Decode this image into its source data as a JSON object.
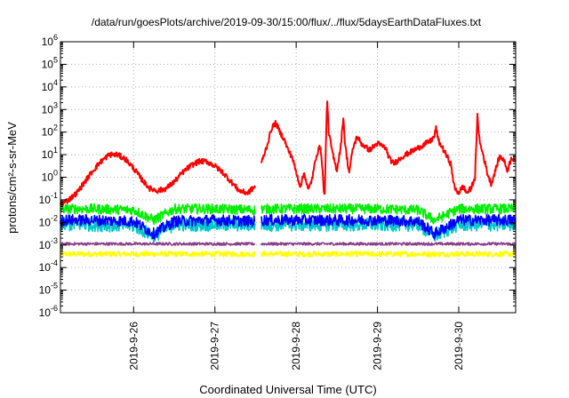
{
  "chart_data": {
    "type": "line",
    "title": "/data/run/goesPlots/archive/2019-09-30/15:00/flux/../flux/5daysEarthDataFluxes.txt",
    "xlabel": "Coordinated Universal Time (UTC)",
    "ylabel": "protons/cm²-s-sr-MeV",
    "y_scale": "log",
    "ylim_exponents": [
      -6,
      6
    ],
    "yticks": [
      {
        "base": "10",
        "exp": "6"
      },
      {
        "base": "10",
        "exp": "5"
      },
      {
        "base": "10",
        "exp": "4"
      },
      {
        "base": "10",
        "exp": "3"
      },
      {
        "base": "10",
        "exp": "2"
      },
      {
        "base": "10",
        "exp": "1"
      },
      {
        "base": "10",
        "exp": "0"
      },
      {
        "base": "10",
        "exp": "-1"
      },
      {
        "base": "10",
        "exp": "-2"
      },
      {
        "base": "10",
        "exp": "-3"
      },
      {
        "base": "10",
        "exp": "-4"
      },
      {
        "base": "10",
        "exp": "-5"
      },
      {
        "base": "10",
        "exp": "-6"
      }
    ],
    "xlim_days": [
      25.1,
      30.7
    ],
    "xticks": [
      "2019-9-26",
      "2019-9-27",
      "2019-9-28",
      "2019-9-29",
      "2019-9-30"
    ],
    "xtick_days": [
      26,
      27,
      28,
      29,
      30
    ],
    "grid": true,
    "gaps": [
      [
        27.5,
        27.57
      ]
    ],
    "series": [
      {
        "color": "#ff0000",
        "noise": 0.12,
        "points": [
          [
            25.1,
            -1.2
          ],
          [
            25.2,
            -1.0
          ],
          [
            25.3,
            -0.7
          ],
          [
            25.4,
            -0.2
          ],
          [
            25.5,
            0.3
          ],
          [
            25.6,
            0.7
          ],
          [
            25.7,
            1.0
          ],
          [
            25.8,
            1.0
          ],
          [
            25.9,
            0.8
          ],
          [
            26.0,
            0.4
          ],
          [
            26.1,
            -0.1
          ],
          [
            26.2,
            -0.5
          ],
          [
            26.3,
            -0.6
          ],
          [
            26.4,
            -0.5
          ],
          [
            26.5,
            -0.2
          ],
          [
            26.6,
            0.2
          ],
          [
            26.7,
            0.5
          ],
          [
            26.8,
            0.7
          ],
          [
            26.9,
            0.7
          ],
          [
            27.0,
            0.5
          ],
          [
            27.1,
            0.2
          ],
          [
            27.2,
            -0.2
          ],
          [
            27.3,
            -0.6
          ],
          [
            27.4,
            -0.7
          ],
          [
            27.5,
            -0.4
          ],
          [
            27.57,
            0.6
          ],
          [
            27.65,
            1.5
          ],
          [
            27.7,
            2.2
          ],
          [
            27.75,
            2.4
          ],
          [
            27.8,
            2.0
          ],
          [
            27.85,
            1.7
          ],
          [
            27.9,
            1.2
          ],
          [
            27.95,
            0.9
          ],
          [
            28.0,
            0.2
          ],
          [
            28.05,
            -0.4
          ],
          [
            28.1,
            0.2
          ],
          [
            28.15,
            -0.6
          ],
          [
            28.2,
            0.0
          ],
          [
            28.25,
            1.0
          ],
          [
            28.3,
            1.4
          ],
          [
            28.35,
            -1.0
          ],
          [
            28.38,
            3.6
          ],
          [
            28.4,
            2.0
          ],
          [
            28.45,
            1.0
          ],
          [
            28.5,
            0.3
          ],
          [
            28.55,
            1.4
          ],
          [
            28.58,
            2.7
          ],
          [
            28.6,
            1.5
          ],
          [
            28.65,
            0.2
          ],
          [
            28.7,
            1.3
          ],
          [
            28.75,
            1.8
          ],
          [
            28.8,
            1.5
          ],
          [
            28.9,
            1.2
          ],
          [
            29.0,
            1.5
          ],
          [
            29.1,
            1.3
          ],
          [
            29.15,
            0.8
          ],
          [
            29.2,
            0.6
          ],
          [
            29.3,
            0.9
          ],
          [
            29.4,
            1.1
          ],
          [
            29.5,
            1.3
          ],
          [
            29.6,
            1.5
          ],
          [
            29.65,
            1.6
          ],
          [
            29.7,
            1.8
          ],
          [
            29.72,
            2.2
          ],
          [
            29.75,
            1.6
          ],
          [
            29.8,
            1.3
          ],
          [
            29.9,
            0.6
          ],
          [
            29.95,
            -0.5
          ],
          [
            30.0,
            -0.7
          ],
          [
            30.05,
            -0.4
          ],
          [
            30.1,
            -0.7
          ],
          [
            30.15,
            -0.5
          ],
          [
            30.2,
            0.0
          ],
          [
            30.23,
            2.7
          ],
          [
            30.26,
            1.5
          ],
          [
            30.3,
            1.0
          ],
          [
            30.35,
            0.2
          ],
          [
            30.4,
            -0.3
          ],
          [
            30.45,
            0.3
          ],
          [
            30.5,
            0.9
          ],
          [
            30.55,
            0.8
          ],
          [
            30.6,
            0.3
          ],
          [
            30.65,
            0.9
          ],
          [
            30.7,
            0.7
          ]
        ]
      },
      {
        "color": "#00ee00",
        "noise": 0.22,
        "points": [
          [
            25.1,
            -1.4
          ],
          [
            25.5,
            -1.4
          ],
          [
            26.0,
            -1.45
          ],
          [
            26.25,
            -1.9
          ],
          [
            26.5,
            -1.4
          ],
          [
            27.0,
            -1.4
          ],
          [
            27.5,
            -1.45
          ],
          [
            27.57,
            -1.4
          ],
          [
            28.0,
            -1.4
          ],
          [
            28.5,
            -1.4
          ],
          [
            29.0,
            -1.4
          ],
          [
            29.5,
            -1.45
          ],
          [
            29.7,
            -1.9
          ],
          [
            30.0,
            -1.4
          ],
          [
            30.7,
            -1.4
          ]
        ]
      },
      {
        "color": "#00c8c8",
        "noise": 0.3,
        "points": [
          [
            25.1,
            -2.1
          ],
          [
            25.5,
            -2.1
          ],
          [
            26.0,
            -2.15
          ],
          [
            26.25,
            -2.6
          ],
          [
            26.5,
            -2.1
          ],
          [
            27.0,
            -2.1
          ],
          [
            27.5,
            -2.1
          ],
          [
            27.57,
            -2.1
          ],
          [
            28.0,
            -2.1
          ],
          [
            28.5,
            -2.1
          ],
          [
            29.0,
            -2.1
          ],
          [
            29.5,
            -2.1
          ],
          [
            29.7,
            -2.6
          ],
          [
            30.0,
            -2.1
          ],
          [
            30.7,
            -2.1
          ]
        ]
      },
      {
        "color": "#0000ff",
        "noise": 0.25,
        "points": [
          [
            25.1,
            -1.9
          ],
          [
            25.5,
            -1.9
          ],
          [
            26.0,
            -1.95
          ],
          [
            26.25,
            -2.5
          ],
          [
            26.5,
            -1.95
          ],
          [
            27.0,
            -1.9
          ],
          [
            27.5,
            -1.95
          ],
          [
            27.57,
            -1.9
          ],
          [
            28.0,
            -1.9
          ],
          [
            28.5,
            -1.9
          ],
          [
            29.0,
            -1.9
          ],
          [
            29.5,
            -1.95
          ],
          [
            29.7,
            -2.5
          ],
          [
            30.0,
            -1.9
          ],
          [
            30.7,
            -1.9
          ]
        ]
      },
      {
        "color": "#8a3d8a",
        "noise": 0.06,
        "points": [
          [
            25.1,
            -2.95
          ],
          [
            26.0,
            -2.95
          ],
          [
            27.0,
            -2.95
          ],
          [
            27.5,
            -2.95
          ],
          [
            27.57,
            -2.95
          ],
          [
            28.5,
            -2.95
          ],
          [
            29.5,
            -2.95
          ],
          [
            30.7,
            -2.95
          ]
        ]
      },
      {
        "color": "#ffff00",
        "noise": 0.12,
        "points": [
          [
            25.1,
            -3.4
          ],
          [
            26.0,
            -3.4
          ],
          [
            27.0,
            -3.4
          ],
          [
            27.5,
            -3.4
          ],
          [
            27.57,
            -3.4
          ],
          [
            28.5,
            -3.4
          ],
          [
            29.5,
            -3.4
          ],
          [
            30.7,
            -3.4
          ]
        ]
      }
    ]
  }
}
